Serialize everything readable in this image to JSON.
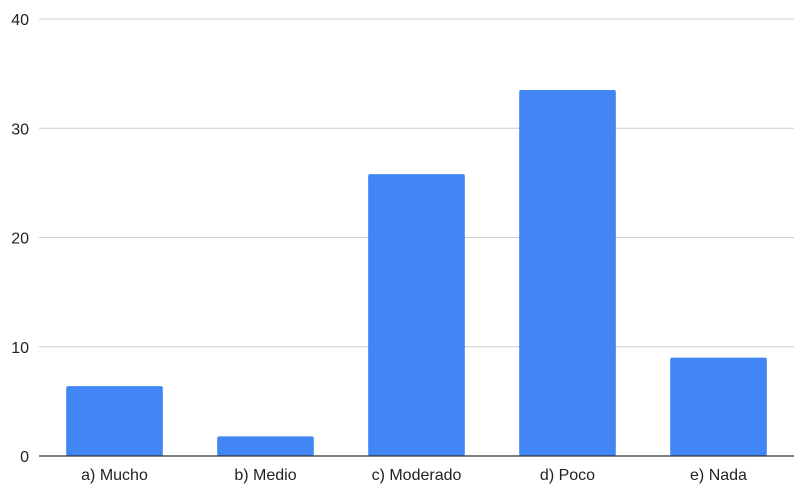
{
  "chart_data": {
    "type": "bar",
    "title": "",
    "xlabel": "",
    "ylabel": "",
    "categories": [
      "a) Mucho",
      "b) Medio",
      "c) Moderado",
      "d) Poco",
      "e) Nada"
    ],
    "values": [
      6.4,
      1.8,
      25.8,
      33.5,
      9.0
    ],
    "ylim": [
      0,
      40
    ],
    "yticks": [
      "0",
      "10",
      "20",
      "30",
      "40"
    ],
    "grid": true,
    "legend": "none",
    "bar_color": "#4285f4"
  }
}
